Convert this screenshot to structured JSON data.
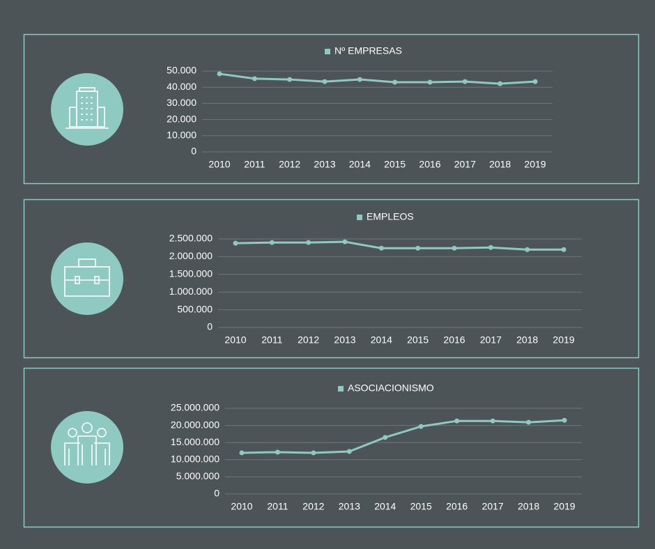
{
  "chart_data": [
    {
      "type": "line",
      "categories": [
        "2010",
        "2011",
        "2012",
        "2013",
        "2014",
        "2015",
        "2016",
        "2017",
        "2018",
        "2019"
      ],
      "series": [
        {
          "name": "Nº EMPRESAS",
          "color": "#8ec9c2",
          "values": [
            48300,
            45300,
            44800,
            43500,
            44800,
            43100,
            43100,
            43500,
            42200,
            43500
          ]
        }
      ],
      "ylim": [
        0,
        50000
      ],
      "yticks": [
        0,
        {
          "value": 10000,
          "label": "10.000"
        },
        {
          "value": 20000,
          "label": "20.000"
        },
        {
          "value": 30000,
          "label": "30.000"
        },
        {
          "value": 40000,
          "label": "40.000"
        },
        {
          "value": 50000,
          "label": "50.000"
        }
      ],
      "grid": true
    },
    {
      "type": "line",
      "categories": [
        "2010",
        "2011",
        "2012",
        "2013",
        "2014",
        "2015",
        "2016",
        "2017",
        "2018",
        "2019"
      ],
      "series": [
        {
          "name": "EMPLEOS",
          "color": "#8ec9c2",
          "values": [
            2380000,
            2400000,
            2400000,
            2420000,
            2240000,
            2240000,
            2240000,
            2260000,
            2200000,
            2200000
          ]
        }
      ],
      "ylim": [
        0,
        2500000
      ],
      "yticks": [
        0,
        {
          "value": 500000,
          "label": "500.000"
        },
        {
          "value": 1000000,
          "label": "1.000.000"
        },
        {
          "value": 1500000,
          "label": "1.500.000"
        },
        {
          "value": 2000000,
          "label": "2.000.000"
        },
        {
          "value": 2500000,
          "label": "2.500.000"
        }
      ],
      "grid": true
    },
    {
      "type": "line",
      "categories": [
        "2010",
        "2011",
        "2012",
        "2013",
        "2014",
        "2015",
        "2016",
        "2017",
        "2018",
        "2019"
      ],
      "series": [
        {
          "name": "ASOCIACIONISMO",
          "color": "#8ec9c2",
          "values": [
            12000000,
            12200000,
            12000000,
            12400000,
            16500000,
            19700000,
            21300000,
            21300000,
            20900000,
            21500000
          ]
        }
      ],
      "ylim": [
        0,
        25000000
      ],
      "yticks": [
        0,
        {
          "value": 5000000,
          "label": "5.000.000"
        },
        {
          "value": 10000000,
          "label": "10.000.000"
        },
        {
          "value": 15000000,
          "label": "15.000.000"
        },
        {
          "value": 20000000,
          "label": "20.000.000"
        },
        {
          "value": 25000000,
          "label": "25.000.000"
        }
      ],
      "grid": true
    }
  ]
}
